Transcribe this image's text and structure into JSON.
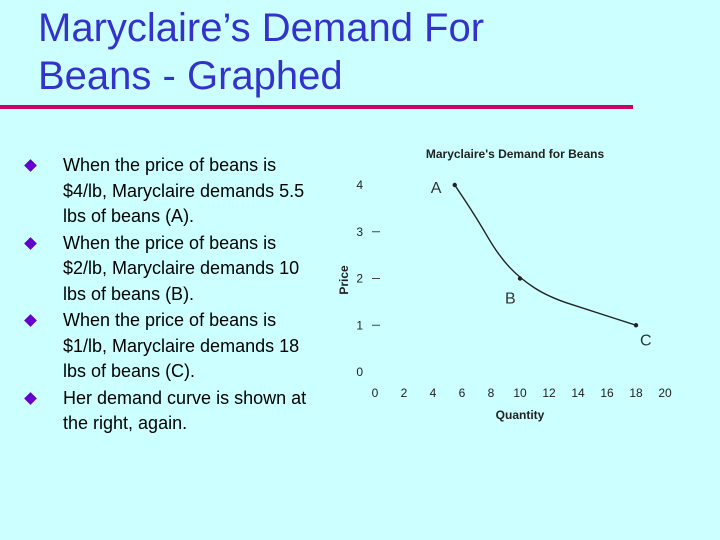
{
  "slide": {
    "title_line1": "Maryclaire’s Demand For",
    "title_line2": "Beans - Graphed",
    "bullets": [
      {
        "text": "When the price of beans is $4/lb, Maryclaire demands 5.5 lbs of beans (A)."
      },
      {
        "text": "When the price of beans is $2/lb, Maryclaire demands 10 lbs of beans (B)."
      },
      {
        "text": "When the price of beans is $1/lb, Maryclaire demands 18 lbs of beans (C)."
      },
      {
        "text": "Her demand curve is shown at the right, again."
      }
    ],
    "colors": {
      "background": "#ccffff",
      "title": "#3333cc",
      "rule": "#cc0066",
      "bullet": "#6600cc"
    }
  },
  "chart_data": {
    "type": "line",
    "title": "Maryclaire's Demand for Beans",
    "xlabel": "Quantity",
    "ylabel": "Price",
    "xlim": [
      0,
      20
    ],
    "ylim": [
      0,
      4
    ],
    "xticks": [
      "0",
      "2",
      "4",
      "6",
      "8",
      "10",
      "12",
      "14",
      "16",
      "18",
      "20"
    ],
    "yticks": [
      "0",
      "1",
      "2",
      "3",
      "4"
    ],
    "series": [
      {
        "points": [
          {
            "x": 5.5,
            "y": 4
          },
          {
            "x": 7,
            "y": 3.3
          },
          {
            "x": 8.5,
            "y": 2.5
          },
          {
            "x": 10,
            "y": 2
          },
          {
            "x": 12,
            "y": 1.6
          },
          {
            "x": 15,
            "y": 1.3
          },
          {
            "x": 18,
            "y": 1
          }
        ]
      }
    ],
    "point_labels": [
      {
        "label": "A",
        "x": 5.5,
        "y": 4
      },
      {
        "label": "B",
        "x": 10,
        "y": 2
      },
      {
        "label": "C",
        "x": 18,
        "y": 1
      }
    ],
    "grid": false
  }
}
